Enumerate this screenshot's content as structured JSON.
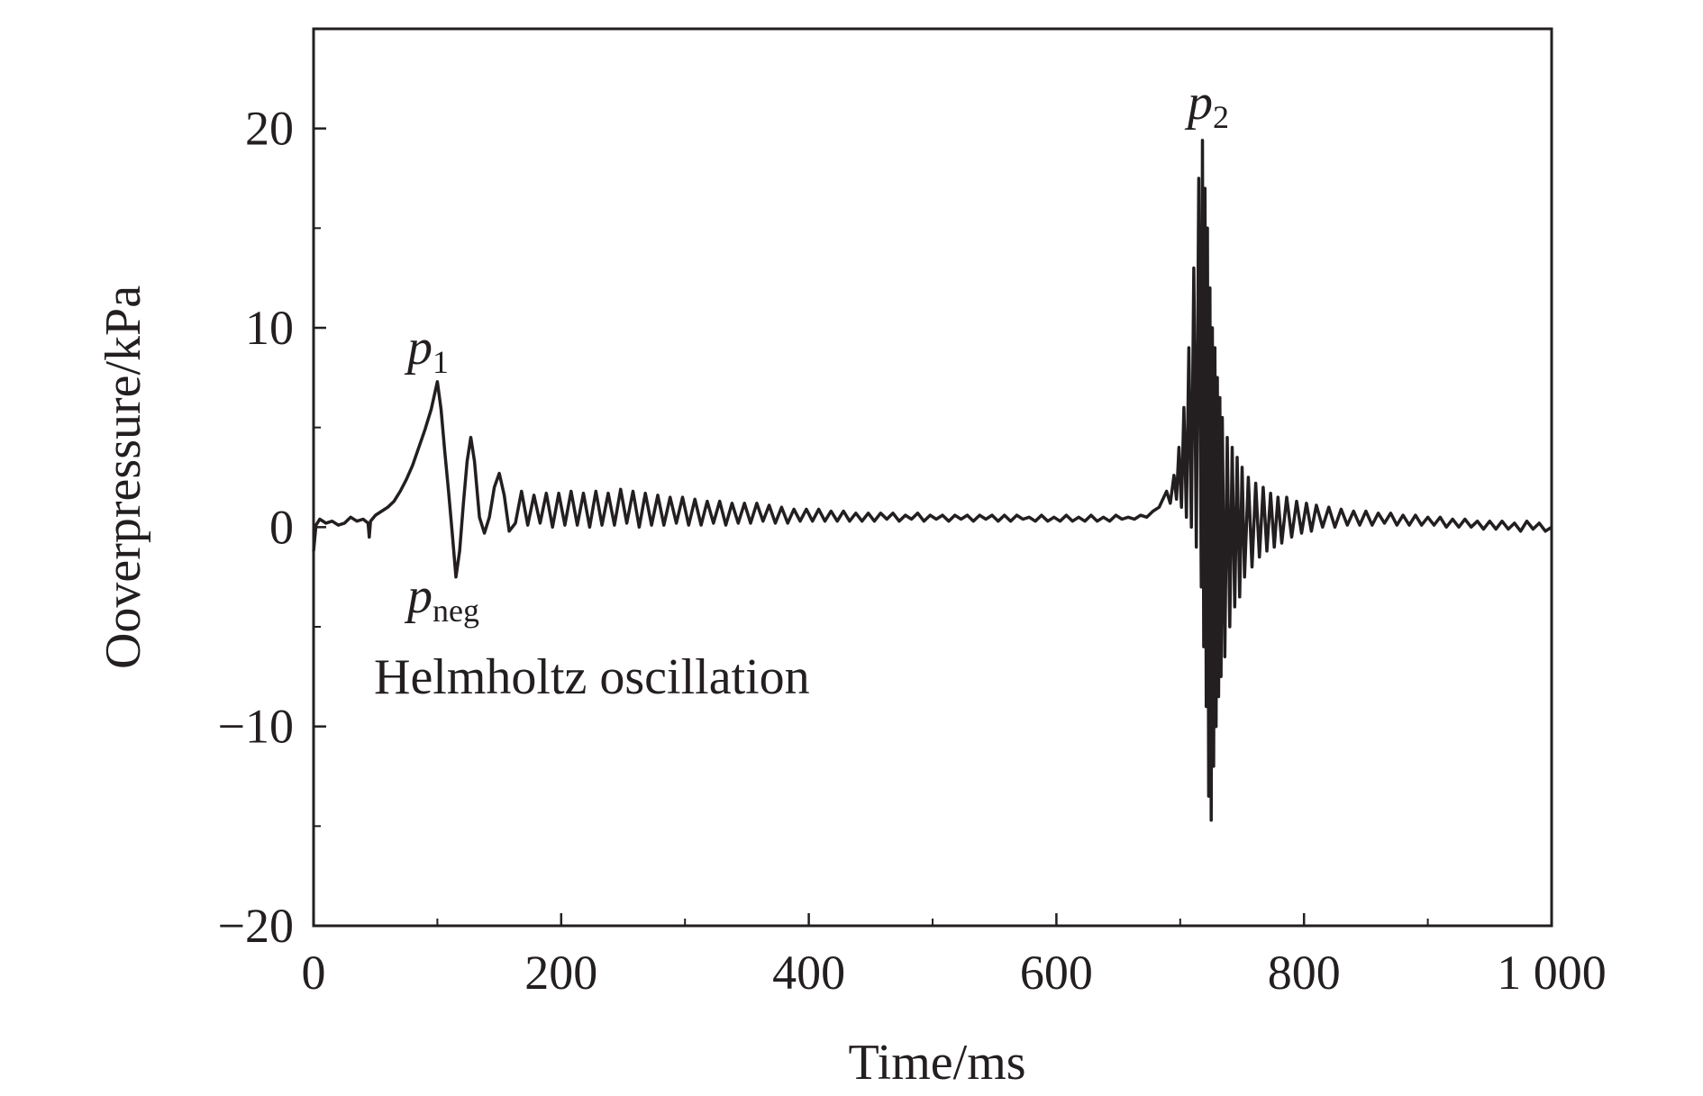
{
  "chart_data": {
    "type": "line",
    "xlabel": "Time/ms",
    "ylabel": "Ooverpressure/kPa",
    "xlim": [
      0,
      1000
    ],
    "ylim": [
      -20,
      25
    ],
    "xticks": [
      0,
      200,
      400,
      600,
      800,
      1000
    ],
    "xtick_labels": [
      "0",
      "200",
      "400",
      "600",
      "800",
      "1 000"
    ],
    "yticks": [
      -20,
      -10,
      0,
      10,
      20
    ],
    "ytick_labels": [
      "−20",
      "−10",
      "0",
      "10",
      "20"
    ],
    "grid": false,
    "legend": "none",
    "line_color": "#231f20",
    "annotations": [
      {
        "id": "p1",
        "base": "p",
        "sub": "1",
        "x": 100,
        "y": 7.3
      },
      {
        "id": "pneg",
        "base": "p",
        "sub": "neg",
        "x": 115,
        "y": -2.5
      },
      {
        "id": "p2",
        "base": "p",
        "sub": "2",
        "x": 718,
        "y": 19.4
      },
      {
        "id": "helmholtz",
        "text": "Helmholtz oscillation",
        "x": 150,
        "y": -7
      }
    ],
    "series": [
      {
        "points": [
          [
            0,
            -1.2
          ],
          [
            2,
            0.1
          ],
          [
            5,
            0.4
          ],
          [
            10,
            0.2
          ],
          [
            15,
            0.3
          ],
          [
            20,
            0.1
          ],
          [
            25,
            0.2
          ],
          [
            30,
            0.5
          ],
          [
            35,
            0.3
          ],
          [
            40,
            0.4
          ],
          [
            44,
            0.2
          ],
          [
            45,
            -0.5
          ],
          [
            46,
            0.3
          ],
          [
            50,
            0.6
          ],
          [
            55,
            0.8
          ],
          [
            60,
            1.0
          ],
          [
            65,
            1.3
          ],
          [
            70,
            1.8
          ],
          [
            75,
            2.4
          ],
          [
            80,
            3.1
          ],
          [
            85,
            4.0
          ],
          [
            90,
            4.9
          ],
          [
            95,
            5.9
          ],
          [
            100,
            7.3
          ],
          [
            103,
            5.9
          ],
          [
            106,
            3.8
          ],
          [
            109,
            1.8
          ],
          [
            112,
            -0.3
          ],
          [
            115,
            -2.5
          ],
          [
            118,
            -1.2
          ],
          [
            121,
            1.2
          ],
          [
            124,
            3.3
          ],
          [
            127,
            4.5
          ],
          [
            130,
            3.3
          ],
          [
            134,
            0.5
          ],
          [
            138,
            -0.3
          ],
          [
            142,
            0.5
          ],
          [
            146,
            2.0
          ],
          [
            150,
            2.7
          ],
          [
            154,
            1.6
          ],
          [
            158,
            -0.2
          ],
          [
            163,
            0.2
          ],
          [
            168,
            1.8
          ],
          [
            173,
            0.1
          ],
          [
            178,
            1.6
          ],
          [
            183,
            0.2
          ],
          [
            188,
            1.7
          ],
          [
            193,
            0.0
          ],
          [
            198,
            1.7
          ],
          [
            203,
            0.1
          ],
          [
            208,
            1.8
          ],
          [
            213,
            0.1
          ],
          [
            218,
            1.7
          ],
          [
            223,
            0.0
          ],
          [
            228,
            1.8
          ],
          [
            233,
            0.1
          ],
          [
            238,
            1.7
          ],
          [
            243,
            0.1
          ],
          [
            248,
            1.9
          ],
          [
            253,
            0.2
          ],
          [
            258,
            1.8
          ],
          [
            263,
            0.0
          ],
          [
            268,
            1.7
          ],
          [
            273,
            0.1
          ],
          [
            278,
            1.6
          ],
          [
            283,
            0.1
          ],
          [
            288,
            1.5
          ],
          [
            293,
            0.2
          ],
          [
            298,
            1.5
          ],
          [
            303,
            0.1
          ],
          [
            308,
            1.4
          ],
          [
            313,
            0.1
          ],
          [
            318,
            1.3
          ],
          [
            323,
            0.2
          ],
          [
            328,
            1.3
          ],
          [
            333,
            0.1
          ],
          [
            338,
            1.2
          ],
          [
            343,
            0.2
          ],
          [
            348,
            1.2
          ],
          [
            353,
            0.2
          ],
          [
            358,
            1.2
          ],
          [
            363,
            0.3
          ],
          [
            368,
            1.1
          ],
          [
            373,
            0.2
          ],
          [
            378,
            1.0
          ],
          [
            383,
            0.2
          ],
          [
            388,
            0.9
          ],
          [
            393,
            0.3
          ],
          [
            398,
            0.9
          ],
          [
            403,
            0.3
          ],
          [
            408,
            0.9
          ],
          [
            413,
            0.3
          ],
          [
            418,
            0.8
          ],
          [
            423,
            0.3
          ],
          [
            428,
            0.8
          ],
          [
            433,
            0.3
          ],
          [
            438,
            0.7
          ],
          [
            443,
            0.3
          ],
          [
            448,
            0.7
          ],
          [
            453,
            0.3
          ],
          [
            458,
            0.7
          ],
          [
            463,
            0.4
          ],
          [
            468,
            0.7
          ],
          [
            473,
            0.3
          ],
          [
            478,
            0.6
          ],
          [
            483,
            0.4
          ],
          [
            488,
            0.7
          ],
          [
            493,
            0.3
          ],
          [
            498,
            0.6
          ],
          [
            503,
            0.4
          ],
          [
            508,
            0.6
          ],
          [
            513,
            0.3
          ],
          [
            518,
            0.6
          ],
          [
            523,
            0.4
          ],
          [
            528,
            0.6
          ],
          [
            533,
            0.3
          ],
          [
            538,
            0.6
          ],
          [
            543,
            0.4
          ],
          [
            548,
            0.6
          ],
          [
            553,
            0.3
          ],
          [
            558,
            0.6
          ],
          [
            563,
            0.3
          ],
          [
            568,
            0.6
          ],
          [
            573,
            0.4
          ],
          [
            578,
            0.5
          ],
          [
            583,
            0.3
          ],
          [
            588,
            0.6
          ],
          [
            593,
            0.3
          ],
          [
            598,
            0.5
          ],
          [
            603,
            0.3
          ],
          [
            608,
            0.6
          ],
          [
            613,
            0.3
          ],
          [
            618,
            0.5
          ],
          [
            623,
            0.3
          ],
          [
            628,
            0.6
          ],
          [
            633,
            0.3
          ],
          [
            638,
            0.5
          ],
          [
            643,
            0.3
          ],
          [
            648,
            0.6
          ],
          [
            653,
            0.4
          ],
          [
            658,
            0.5
          ],
          [
            663,
            0.4
          ],
          [
            668,
            0.6
          ],
          [
            673,
            0.5
          ],
          [
            678,
            0.8
          ],
          [
            683,
            1.0
          ],
          [
            686,
            1.4
          ],
          [
            689,
            1.8
          ],
          [
            692,
            1.2
          ],
          [
            695,
            2.6
          ],
          [
            697,
            1.4
          ],
          [
            699,
            4.0
          ],
          [
            701,
            1.0
          ],
          [
            703,
            6.0
          ],
          [
            705,
            0.5
          ],
          [
            707,
            9.0
          ],
          [
            709,
            0.0
          ],
          [
            711,
            13.0
          ],
          [
            713,
            -1.0
          ],
          [
            715,
            17.5
          ],
          [
            717,
            -3.0
          ],
          [
            718,
            19.4
          ],
          [
            719,
            -6.0
          ],
          [
            720,
            17.0
          ],
          [
            721,
            -9.0
          ],
          [
            722,
            15.0
          ],
          [
            723,
            -13.5
          ],
          [
            724,
            12.0
          ],
          [
            725,
            -14.7
          ],
          [
            726,
            10.0
          ],
          [
            727,
            -12.0
          ],
          [
            728,
            9.0
          ],
          [
            729,
            -10.0
          ],
          [
            730,
            7.5
          ],
          [
            731,
            -8.5
          ],
          [
            732,
            6.5
          ],
          [
            733,
            -7.5
          ],
          [
            734,
            5.5
          ],
          [
            736,
            -6.5
          ],
          [
            738,
            4.5
          ],
          [
            740,
            -5.0
          ],
          [
            742,
            4.0
          ],
          [
            744,
            -4.0
          ],
          [
            746,
            3.5
          ],
          [
            748,
            -3.5
          ],
          [
            750,
            3.0
          ],
          [
            752,
            -2.5
          ],
          [
            755,
            2.5
          ],
          [
            758,
            -2.0
          ],
          [
            761,
            2.2
          ],
          [
            764,
            -1.5
          ],
          [
            767,
            2.0
          ],
          [
            770,
            -1.2
          ],
          [
            773,
            1.7
          ],
          [
            776,
            -1.0
          ],
          [
            779,
            1.5
          ],
          [
            782,
            -0.8
          ],
          [
            786,
            1.5
          ],
          [
            790,
            -0.5
          ],
          [
            794,
            1.3
          ],
          [
            798,
            -0.3
          ],
          [
            802,
            1.2
          ],
          [
            806,
            -0.2
          ],
          [
            810,
            1.1
          ],
          [
            815,
            0.0
          ],
          [
            820,
            1.0
          ],
          [
            825,
            0.0
          ],
          [
            830,
            0.9
          ],
          [
            835,
            0.1
          ],
          [
            840,
            0.8
          ],
          [
            845,
            0.1
          ],
          [
            850,
            0.8
          ],
          [
            855,
            0.1
          ],
          [
            860,
            0.7
          ],
          [
            865,
            0.2
          ],
          [
            870,
            0.7
          ],
          [
            875,
            0.1
          ],
          [
            880,
            0.6
          ],
          [
            885,
            0.1
          ],
          [
            890,
            0.6
          ],
          [
            895,
            0.1
          ],
          [
            900,
            0.5
          ],
          [
            905,
            0.1
          ],
          [
            910,
            0.5
          ],
          [
            915,
            0.0
          ],
          [
            920,
            0.4
          ],
          [
            925,
            0.0
          ],
          [
            930,
            0.4
          ],
          [
            935,
            0.0
          ],
          [
            940,
            0.3
          ],
          [
            945,
            -0.1
          ],
          [
            950,
            0.3
          ],
          [
            955,
            -0.1
          ],
          [
            960,
            0.3
          ],
          [
            965,
            -0.1
          ],
          [
            970,
            0.2
          ],
          [
            975,
            -0.2
          ],
          [
            980,
            0.3
          ],
          [
            985,
            -0.1
          ],
          [
            990,
            0.2
          ],
          [
            995,
            -0.2
          ],
          [
            1000,
            0.0
          ]
        ]
      }
    ]
  }
}
